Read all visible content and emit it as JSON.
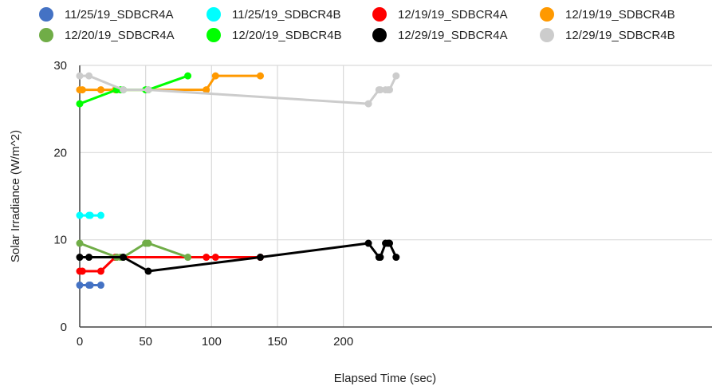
{
  "chart_data": {
    "type": "line",
    "title": "",
    "xlabel": "Elapsed Time (sec)",
    "ylabel": "Solar Irradiance (W/m^2)",
    "xlim": [
      0,
      240
    ],
    "ylim": [
      0,
      30
    ],
    "xticks": [
      0,
      50,
      100,
      150,
      200
    ],
    "yticks": [
      0,
      10,
      20,
      30
    ],
    "grid": true,
    "legend_position": "top",
    "series": [
      {
        "name": "11/25/19_SDBCR4A",
        "color": "#4472c4",
        "points": [
          [
            0,
            4.8
          ],
          [
            7,
            4.8
          ],
          [
            8,
            4.8
          ],
          [
            16,
            4.8
          ]
        ]
      },
      {
        "name": "11/25/19_SDBCR4B",
        "color": "#00ffff",
        "points": [
          [
            0,
            12.8
          ],
          [
            7,
            12.8
          ],
          [
            8,
            12.8
          ],
          [
            16,
            12.8
          ]
        ]
      },
      {
        "name": "12/19/19_SDBCR4A",
        "color": "#ff0000",
        "points": [
          [
            0,
            6.4
          ],
          [
            2,
            6.4
          ],
          [
            16,
            6.4
          ],
          [
            27,
            8.0
          ],
          [
            28,
            8.0
          ],
          [
            96,
            8.0
          ],
          [
            103,
            8.0
          ],
          [
            137,
            8.0
          ]
        ]
      },
      {
        "name": "12/19/19_SDBCR4B",
        "color": "#ff9900",
        "points": [
          [
            0,
            27.2
          ],
          [
            2,
            27.2
          ],
          [
            16,
            27.2
          ],
          [
            27,
            27.2
          ],
          [
            28,
            27.2
          ],
          [
            96,
            27.2
          ],
          [
            103,
            28.8
          ],
          [
            137,
            28.8
          ]
        ]
      },
      {
        "name": "12/20/19_SDBCR4A",
        "color": "#70ad47",
        "points": [
          [
            0,
            9.6
          ],
          [
            28,
            8.0
          ],
          [
            31,
            8.0
          ],
          [
            33,
            8.0
          ],
          [
            50,
            9.6
          ],
          [
            52,
            9.6
          ],
          [
            82,
            8.0
          ]
        ]
      },
      {
        "name": "12/20/19_SDBCR4B",
        "color": "#00ff00",
        "points": [
          [
            0,
            25.6
          ],
          [
            28,
            27.2
          ],
          [
            31,
            27.2
          ],
          [
            33,
            27.2
          ],
          [
            50,
            27.2
          ],
          [
            52,
            27.2
          ],
          [
            82,
            28.8
          ]
        ]
      },
      {
        "name": "12/29/19_SDBCR4A",
        "color": "#000000",
        "points": [
          [
            0,
            8.0
          ],
          [
            7,
            8.0
          ],
          [
            33,
            8.0
          ],
          [
            52,
            6.4
          ],
          [
            137,
            8.0
          ],
          [
            219,
            9.6
          ],
          [
            227,
            8.0
          ],
          [
            228,
            8.0
          ],
          [
            232,
            9.6
          ],
          [
            234,
            9.6
          ],
          [
            235,
            9.6
          ],
          [
            240,
            8.0
          ]
        ]
      },
      {
        "name": "12/29/19_SDBCR4B",
        "color": "#cccccc",
        "points": [
          [
            0,
            28.8
          ],
          [
            7,
            28.8
          ],
          [
            33,
            27.2
          ],
          [
            52,
            27.2
          ],
          [
            219,
            25.6
          ],
          [
            227,
            27.2
          ],
          [
            228,
            27.2
          ],
          [
            232,
            27.2
          ],
          [
            234,
            27.2
          ],
          [
            235,
            27.2
          ],
          [
            240,
            28.8
          ]
        ]
      }
    ]
  }
}
